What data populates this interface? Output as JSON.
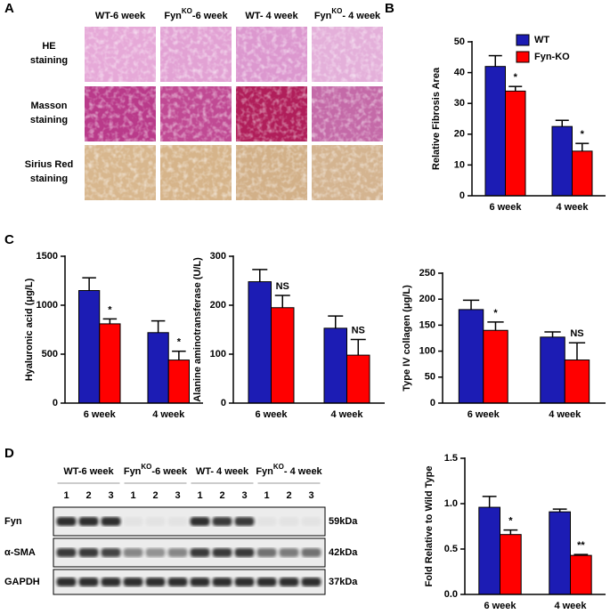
{
  "panel_labels": [
    "A",
    "B",
    "C",
    "D"
  ],
  "panel_a": {
    "columns": [
      {
        "pre": "WT-6 week"
      },
      {
        "pre": "Fyn",
        "sup": "KO",
        "post": "-6 week"
      },
      {
        "pre": "WT- 4 week"
      },
      {
        "pre": "Fyn",
        "sup": "KO",
        "post": "- 4 week"
      }
    ],
    "rows": [
      [
        "HE",
        "staining"
      ],
      [
        "Masson",
        "staining"
      ],
      [
        "Sirius Red",
        "staining"
      ]
    ]
  },
  "panel_d": {
    "groups": [
      {
        "pre": "WT-6 week"
      },
      {
        "pre": "Fyn",
        "sup": "KO",
        "post": "-6 week"
      },
      {
        "pre": "WT- 4 week"
      },
      {
        "pre": "Fyn",
        "sup": "KO",
        "post": "- 4 week"
      }
    ],
    "lanes": [
      "1",
      "2",
      "3",
      "1",
      "2",
      "3",
      "1",
      "2",
      "3",
      "1",
      "2",
      "3"
    ],
    "rows": [
      "Fyn",
      "α-SMA",
      "GAPDH"
    ],
    "sizes": [
      "59kDa",
      "42kDa",
      "37kDa"
    ]
  },
  "chart_data": [
    {
      "type": "bar",
      "ylabel": "Relative Fibrosis Area",
      "categories": [
        "6 week",
        "4 week"
      ],
      "series": [
        {
          "name": "WT",
          "color": "#1c1cb4",
          "values": [
            42,
            22.5
          ],
          "errors": [
            3.5,
            2
          ]
        },
        {
          "name": "Fyn-KO",
          "color": "#ff0000",
          "values": [
            34,
            14.5
          ],
          "errors": [
            1.5,
            2.5
          ]
        }
      ],
      "annotations": [
        "*",
        "*"
      ],
      "ylim": [
        0,
        50
      ],
      "yticks": [
        0,
        10,
        20,
        30,
        40,
        50
      ],
      "legend": "upper right"
    },
    {
      "type": "bar",
      "ylabel": "Hyaluronic acid (μg/L)",
      "categories": [
        "6 week",
        "4 week"
      ],
      "series": [
        {
          "color": "#1c1cb4",
          "values": [
            1150,
            720
          ],
          "errors": [
            130,
            120
          ]
        },
        {
          "color": "#ff0000",
          "values": [
            810,
            440
          ],
          "errors": [
            50,
            90
          ]
        }
      ],
      "annotations": [
        "*",
        "*"
      ],
      "ylim": [
        0,
        1500
      ],
      "yticks": [
        0,
        500,
        1000,
        1500
      ]
    },
    {
      "type": "bar",
      "ylabel": "Alanine aminotransferase (U/L)",
      "categories": [
        "6 week",
        "4 week"
      ],
      "series": [
        {
          "color": "#1c1cb4",
          "values": [
            248,
            153
          ],
          "errors": [
            25,
            25
          ]
        },
        {
          "color": "#ff0000",
          "values": [
            195,
            98
          ],
          "errors": [
            25,
            32
          ]
        }
      ],
      "annotations": [
        "NS",
        "NS"
      ],
      "ylim": [
        0,
        300
      ],
      "yticks": [
        0,
        100,
        200,
        300
      ]
    },
    {
      "type": "bar",
      "ylabel": "Type IV collagen (μg/L)",
      "categories": [
        "6 week",
        "4 week"
      ],
      "series": [
        {
          "color": "#1c1cb4",
          "values": [
            180,
            127
          ],
          "errors": [
            18,
            10
          ]
        },
        {
          "color": "#ff0000",
          "values": [
            140,
            83
          ],
          "errors": [
            16,
            33
          ]
        }
      ],
      "annotations": [
        "*",
        "NS"
      ],
      "ylim": [
        0,
        250
      ],
      "yticks": [
        0,
        50,
        100,
        150,
        200,
        250
      ]
    },
    {
      "type": "bar",
      "ylabel": "Fold Relative to Wild Type",
      "categories": [
        "6 week",
        "4 week"
      ],
      "series": [
        {
          "color": "#1c1cb4",
          "values": [
            0.96,
            0.91
          ],
          "errors": [
            0.12,
            0.03
          ]
        },
        {
          "color": "#ff0000",
          "values": [
            0.66,
            0.43
          ],
          "errors": [
            0.05,
            0.01
          ]
        }
      ],
      "annotations": [
        "*",
        "**"
      ],
      "ylim": [
        0,
        1.5
      ],
      "yticks": [
        {
          "value": 0,
          "label": "0.0"
        },
        0.5,
        {
          "value": 1,
          "label": "1.0"
        },
        1.5
      ]
    }
  ]
}
